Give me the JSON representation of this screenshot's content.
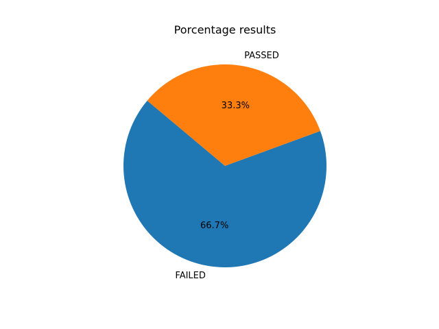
{
  "chart_data": {
    "type": "pie",
    "title": "Porcentage results",
    "slices": [
      {
        "label": "FAILED",
        "value": 66.7,
        "pct_label": "66.7%",
        "color": "#1f77b4"
      },
      {
        "label": "PASSED",
        "value": 33.3,
        "pct_label": "33.3%",
        "color": "#ff7f0e"
      }
    ],
    "start_angle_deg": 140,
    "direction": "counterclockwise"
  }
}
